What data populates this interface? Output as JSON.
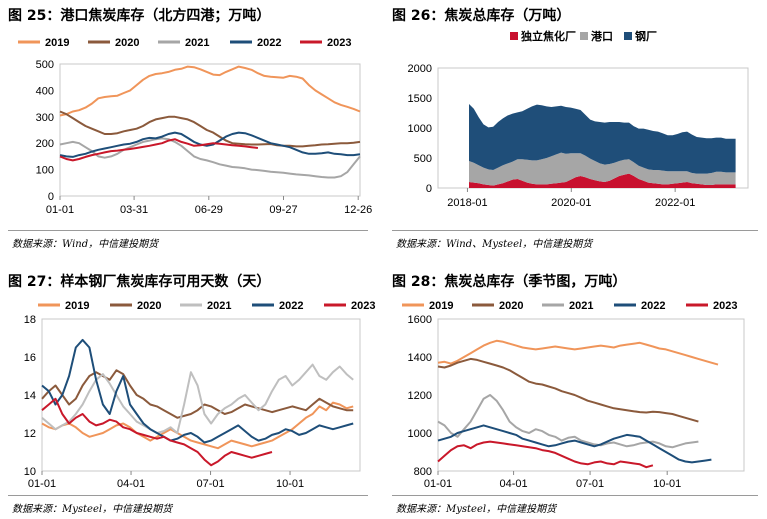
{
  "panels": [
    {
      "title": "图 25：港口焦炭库存（北方四港；万吨）",
      "source": "数据来源：Wind，中信建投期货"
    },
    {
      "title": "图 26：焦炭总库存（万吨）",
      "source": "数据来源：Wind、Mysteel，中信建投期货"
    },
    {
      "title": "图 27：样本钢厂焦炭库存可用天数（天）",
      "source": "数据来源：Mysteel，中信建投期货"
    },
    {
      "title": "图 28：焦炭总库存（季节图，万吨）",
      "source": "数据来源：Mysteel，中信建投期货"
    }
  ],
  "chart_data": [
    {
      "type": "line",
      "title": "图 25：港口焦炭库存（北方四港；万吨）",
      "xlabel": "",
      "ylabel": "",
      "ylim": [
        0,
        500
      ],
      "y_ticks": [
        0,
        100,
        200,
        300,
        400,
        500
      ],
      "x_ticks": [
        "01-01",
        "03-31",
        "06-29",
        "09-27",
        "12-26"
      ],
      "x_tick_pos": [
        0,
        0.247,
        0.496,
        0.745,
        0.994
      ],
      "legend": "top",
      "grid": false,
      "series": [
        {
          "name": "2019",
          "color": "#f0955a",
          "values": [
            305,
            310,
            320,
            325,
            335,
            350,
            370,
            375,
            378,
            380,
            390,
            400,
            420,
            440,
            455,
            462,
            465,
            470,
            478,
            482,
            490,
            488,
            480,
            470,
            460,
            458,
            470,
            480,
            490,
            485,
            478,
            465,
            455,
            452,
            450,
            448,
            455,
            452,
            445,
            420,
            400,
            385,
            370,
            355,
            345,
            338,
            330,
            320
          ]
        },
        {
          "name": "2020",
          "color": "#8b5a3c",
          "values": [
            320,
            310,
            295,
            280,
            265,
            255,
            245,
            235,
            235,
            238,
            245,
            250,
            255,
            265,
            280,
            290,
            295,
            300,
            300,
            295,
            290,
            280,
            265,
            250,
            240,
            225,
            210,
            200,
            198,
            196,
            195,
            195,
            196,
            197,
            192,
            190,
            190,
            188,
            188,
            190,
            192,
            195,
            196,
            198,
            200,
            200,
            202,
            205
          ]
        },
        {
          "name": "2021",
          "color": "#a6a6a6",
          "values": [
            195,
            200,
            205,
            200,
            185,
            170,
            150,
            145,
            150,
            160,
            175,
            185,
            195,
            205,
            210,
            215,
            218,
            215,
            205,
            190,
            170,
            150,
            140,
            135,
            128,
            120,
            115,
            110,
            108,
            105,
            100,
            98,
            95,
            92,
            90,
            88,
            85,
            82,
            80,
            78,
            75,
            72,
            70,
            70,
            75,
            90,
            120,
            150
          ]
        },
        {
          "name": "2022",
          "color": "#1e4e79",
          "values": [
            155,
            150,
            148,
            155,
            160,
            168,
            175,
            180,
            185,
            190,
            195,
            198,
            205,
            215,
            220,
            218,
            225,
            235,
            240,
            235,
            220,
            205,
            195,
            190,
            195,
            210,
            225,
            235,
            240,
            238,
            230,
            220,
            210,
            200,
            195,
            190,
            185,
            175,
            165,
            160,
            160,
            162,
            165,
            160,
            158,
            155,
            155,
            158
          ]
        },
        {
          "name": "2023",
          "color": "#c9182a",
          "values": [
            150,
            140,
            135,
            140,
            148,
            155,
            160,
            165,
            170,
            172,
            175,
            178,
            182,
            186,
            190,
            195,
            200,
            210,
            215,
            205,
            198,
            190,
            192,
            196,
            200,
            198,
            195,
            192,
            190,
            188,
            185,
            182
          ]
        }
      ]
    },
    {
      "type": "area",
      "title": "图 26：焦炭总库存（万吨）",
      "xlabel": "",
      "ylabel": "",
      "ylim": [
        0,
        2000
      ],
      "y_ticks": [
        0,
        500,
        1000,
        1500,
        2000
      ],
      "x_ticks": [
        "2018-01",
        "2020-01",
        "2022-01"
      ],
      "x_tick_pos": [
        0.095,
        0.43,
        0.765
      ],
      "legend": "top",
      "stacked": true,
      "grid": false,
      "series_start": 0.1,
      "series_end": 0.96,
      "series": [
        {
          "name": "独立焦化厂",
          "color": "#c8102e",
          "values": [
            100,
            90,
            80,
            60,
            50,
            40,
            60,
            80,
            110,
            140,
            150,
            120,
            90,
            70,
            60,
            60,
            60,
            70,
            80,
            90,
            100,
            140,
            180,
            200,
            180,
            150,
            130,
            110,
            100,
            120,
            160,
            200,
            220,
            240,
            200,
            150,
            120,
            90,
            80,
            70,
            60,
            60,
            70,
            80,
            90,
            100,
            80,
            70,
            60,
            50,
            50,
            60,
            60,
            60,
            60,
            60
          ]
        },
        {
          "name": "港口",
          "color": "#a6a6a6",
          "values": [
            350,
            330,
            300,
            280,
            260,
            260,
            280,
            300,
            300,
            300,
            330,
            360,
            380,
            390,
            400,
            420,
            440,
            460,
            480,
            500,
            470,
            440,
            400,
            380,
            360,
            340,
            320,
            300,
            290,
            280,
            260,
            250,
            250,
            240,
            230,
            220,
            220,
            220,
            220,
            230,
            230,
            220,
            210,
            200,
            190,
            180,
            170,
            170,
            180,
            190,
            200,
            210,
            210,
            200,
            200,
            200
          ]
        },
        {
          "name": "钢厂",
          "color": "#1f4e79",
          "values": [
            950,
            900,
            800,
            720,
            700,
            720,
            760,
            780,
            800,
            800,
            780,
            800,
            850,
            900,
            930,
            900,
            860,
            820,
            800,
            780,
            780,
            760,
            740,
            720,
            680,
            650,
            660,
            690,
            700,
            700,
            680,
            650,
            620,
            610,
            600,
            620,
            650,
            660,
            650,
            640,
            620,
            600,
            600,
            620,
            650,
            660,
            640,
            610,
            600,
            590,
            580,
            570,
            570,
            560,
            560,
            560
          ]
        }
      ]
    },
    {
      "type": "line",
      "title": "图 27：样本钢厂焦炭库存可用天数（天）",
      "xlabel": "",
      "ylabel": "",
      "ylim": [
        10,
        18
      ],
      "y_ticks": [
        10,
        12,
        14,
        16,
        18
      ],
      "x_ticks": [
        "01-01",
        "04-01",
        "07-01",
        "10-01"
      ],
      "x_tick_pos": [
        0,
        0.28,
        0.53,
        0.78
      ],
      "legend": "top",
      "grid": false,
      "series": [
        {
          "name": "2019",
          "color": "#f0955a",
          "values": [
            12.5,
            12.3,
            12.2,
            12.4,
            12.5,
            12.3,
            12.0,
            11.8,
            11.9,
            12.0,
            12.2,
            12.4,
            12.5,
            12.3,
            12.0,
            11.8,
            11.6,
            11.8,
            12.0,
            12.2,
            12.0,
            11.8,
            11.6,
            11.5,
            11.4,
            11.3,
            11.2,
            11.4,
            11.6,
            11.5,
            11.4,
            11.3,
            11.4,
            11.5,
            11.6,
            11.8,
            12.0,
            12.2,
            12.5,
            12.8,
            13.0,
            13.4,
            13.2,
            13.6,
            13.5,
            13.3,
            13.4
          ]
        },
        {
          "name": "2020",
          "color": "#8b5a3c",
          "values": [
            13.8,
            14.2,
            14.5,
            14.0,
            13.5,
            13.8,
            14.5,
            15.0,
            15.2,
            15.0,
            14.8,
            15.3,
            15.1,
            14.5,
            14.0,
            13.8,
            13.5,
            13.4,
            13.2,
            13.0,
            12.8,
            12.9,
            13.0,
            13.2,
            13.5,
            13.4,
            13.2,
            13.0,
            13.1,
            13.3,
            13.5,
            13.4,
            13.3,
            13.2,
            13.1,
            13.2,
            13.3,
            13.4,
            13.3,
            13.2,
            13.5,
            13.8,
            13.6,
            13.4,
            13.3,
            13.2,
            13.2
          ]
        },
        {
          "name": "2021",
          "color": "#bfbfbf",
          "values": [
            12.8,
            12.5,
            12.2,
            12.4,
            12.6,
            13.0,
            13.5,
            14.2,
            14.8,
            15.1,
            14.6,
            14.0,
            13.4,
            13.0,
            12.6,
            12.4,
            12.2,
            12.0,
            12.1,
            12.3,
            12.0,
            13.5,
            15.2,
            14.5,
            13.0,
            12.5,
            13.0,
            13.3,
            13.5,
            13.8,
            14.0,
            13.6,
            13.2,
            13.5,
            14.2,
            14.8,
            15.0,
            14.5,
            14.8,
            15.2,
            15.6,
            15.0,
            14.8,
            15.2,
            15.5,
            15.1,
            14.8
          ]
        },
        {
          "name": "2022",
          "color": "#1e4e79",
          "values": [
            14.5,
            14.2,
            13.5,
            14.0,
            15.0,
            16.5,
            16.9,
            16.5,
            14.8,
            13.5,
            13.0,
            14.2,
            15.0,
            13.5,
            13.0,
            12.5,
            12.2,
            12.0,
            11.8,
            11.6,
            11.7,
            11.9,
            12.0,
            11.8,
            11.5,
            11.6,
            11.8,
            12.0,
            12.2,
            12.4,
            12.1,
            11.8,
            11.6,
            11.7,
            11.9,
            12.0,
            12.2,
            12.1,
            11.9,
            12.0,
            12.2,
            12.4,
            12.3,
            12.2,
            12.3,
            12.4,
            12.5
          ]
        },
        {
          "name": "2023",
          "color": "#c9182a",
          "values": [
            13.2,
            13.5,
            13.8,
            13.0,
            12.5,
            12.8,
            13.0,
            12.6,
            12.4,
            12.5,
            12.7,
            12.6,
            12.3,
            12.2,
            12.0,
            11.9,
            11.8,
            11.7,
            11.8,
            11.6,
            11.5,
            11.4,
            11.2,
            11.0,
            10.6,
            10.3,
            10.5,
            10.8,
            11.0,
            10.9,
            10.8,
            10.7,
            10.8,
            10.9,
            11.0
          ]
        }
      ]
    },
    {
      "type": "line",
      "title": "图 28：焦炭总库存（季节图，万吨）",
      "xlabel": "",
      "ylabel": "",
      "ylim": [
        800,
        1600
      ],
      "y_ticks": [
        800,
        1000,
        1200,
        1400,
        1600
      ],
      "x_ticks": [
        "01-01",
        "04-01",
        "07-01",
        "10-01"
      ],
      "x_tick_pos": [
        0,
        0.247,
        0.497,
        0.749
      ],
      "legend": "top",
      "grid": false,
      "series": [
        {
          "name": "2019",
          "color": "#f0955a",
          "values": [
            1370,
            1375,
            1365,
            1380,
            1400,
            1420,
            1440,
            1460,
            1475,
            1485,
            1480,
            1470,
            1460,
            1450,
            1445,
            1440,
            1445,
            1450,
            1455,
            1450,
            1445,
            1440,
            1445,
            1450,
            1455,
            1460,
            1455,
            1450,
            1460,
            1465,
            1470,
            1475,
            1465,
            1455,
            1445,
            1440,
            1430,
            1420,
            1410,
            1400,
            1390,
            1380,
            1370,
            1360
          ]
        },
        {
          "name": "2020",
          "color": "#8b5a3c",
          "values": [
            1350,
            1345,
            1355,
            1370,
            1380,
            1390,
            1385,
            1375,
            1365,
            1355,
            1345,
            1330,
            1310,
            1290,
            1270,
            1260,
            1255,
            1245,
            1235,
            1220,
            1210,
            1200,
            1185,
            1170,
            1160,
            1150,
            1140,
            1130,
            1125,
            1120,
            1115,
            1110,
            1108,
            1112,
            1110,
            1105,
            1100,
            1090,
            1080,
            1070,
            1060
          ]
        },
        {
          "name": "2021",
          "color": "#a6a6a6",
          "values": [
            1060,
            1040,
            1000,
            980,
            1020,
            1060,
            1120,
            1180,
            1200,
            1170,
            1120,
            1060,
            1030,
            1010,
            1000,
            1020,
            1010,
            990,
            980,
            960,
            975,
            980,
            960,
            950,
            940,
            935,
            945,
            950,
            940,
            930,
            935,
            945,
            950,
            955,
            945,
            930,
            925,
            935,
            945,
            950,
            955
          ]
        },
        {
          "name": "2022",
          "color": "#1e4e79",
          "values": [
            960,
            970,
            980,
            1000,
            1010,
            1020,
            1030,
            1040,
            1030,
            1020,
            1010,
            1000,
            990,
            970,
            960,
            950,
            940,
            930,
            935,
            945,
            955,
            960,
            950,
            940,
            930,
            940,
            955,
            970,
            980,
            990,
            985,
            980,
            960,
            940,
            920,
            900,
            880,
            860,
            850,
            845,
            850,
            855,
            860
          ]
        },
        {
          "name": "2023",
          "color": "#c9182a",
          "values": [
            850,
            880,
            910,
            930,
            935,
            920,
            940,
            950,
            955,
            950,
            945,
            940,
            935,
            930,
            925,
            920,
            910,
            905,
            895,
            880,
            865,
            850,
            840,
            835,
            845,
            850,
            840,
            835,
            850,
            845,
            840,
            835,
            820,
            830
          ]
        }
      ]
    }
  ]
}
